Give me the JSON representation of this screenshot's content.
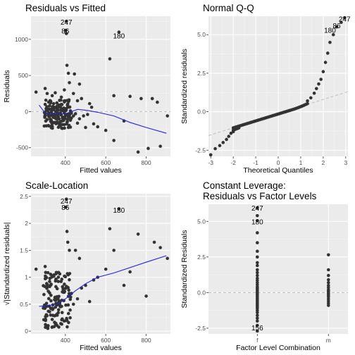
{
  "chart_data": [
    {
      "type": "scatter",
      "title": "Residuals vs Fitted",
      "title2": "",
      "xlabel": "Fitted values",
      "ylabel": "Residuals",
      "xlim": [
        230,
        920
      ],
      "ylim": [
        -620,
        1320
      ],
      "xticks": [
        400,
        600,
        800
      ],
      "yticks": [
        -500,
        0,
        500,
        1000
      ],
      "ref_line": 0,
      "labels": [
        {
          "text": "247",
          "x": 405,
          "y": 1240
        },
        {
          "text": "86",
          "x": 400,
          "y": 1120
        },
        {
          "text": "180",
          "x": 665,
          "y": 1050
        }
      ],
      "smooth": [
        [
          270,
          90
        ],
        [
          300,
          -20
        ],
        [
          340,
          -30
        ],
        [
          400,
          -30
        ],
        [
          460,
          30
        ],
        [
          500,
          20
        ],
        [
          560,
          -10
        ],
        [
          640,
          -60
        ],
        [
          720,
          -150
        ],
        [
          800,
          -220
        ],
        [
          900,
          -300
        ]
      ],
      "points": [
        [
          405,
          1250
        ],
        [
          402,
          1125
        ],
        [
          405,
          1080
        ],
        [
          665,
          1100
        ],
        [
          408,
          640
        ],
        [
          415,
          530
        ],
        [
          420,
          400
        ],
        [
          470,
          380
        ],
        [
          445,
          520
        ],
        [
          620,
          730
        ],
        [
          255,
          270
        ],
        [
          300,
          320
        ],
        [
          310,
          250
        ],
        [
          335,
          220
        ],
        [
          350,
          260
        ],
        [
          380,
          200
        ],
        [
          395,
          300
        ],
        [
          440,
          250
        ],
        [
          460,
          150
        ],
        [
          480,
          180
        ],
        [
          520,
          110
        ],
        [
          530,
          60
        ],
        [
          640,
          220
        ],
        [
          720,
          210
        ],
        [
          775,
          180
        ],
        [
          830,
          180
        ],
        [
          855,
          130
        ],
        [
          905,
          -60
        ],
        [
          600,
          -260
        ],
        [
          640,
          -400
        ],
        [
          690,
          -130
        ],
        [
          760,
          -560
        ],
        [
          810,
          -510
        ],
        [
          870,
          -480
        ],
        [
          540,
          -170
        ],
        [
          560,
          -210
        ],
        [
          500,
          -220
        ],
        [
          460,
          -160
        ],
        [
          430,
          -90
        ],
        [
          300,
          -30
        ],
        [
          310,
          -110
        ],
        [
          320,
          -70
        ],
        [
          330,
          -120
        ],
        [
          335,
          40
        ],
        [
          340,
          -40
        ],
        [
          345,
          -60
        ],
        [
          350,
          -90
        ],
        [
          355,
          50
        ],
        [
          360,
          -100
        ],
        [
          365,
          20
        ],
        [
          370,
          -30
        ],
        [
          375,
          -140
        ],
        [
          380,
          -50
        ],
        [
          385,
          30
        ],
        [
          390,
          -80
        ],
        [
          395,
          -20
        ],
        [
          400,
          -60
        ],
        [
          405,
          40
        ],
        [
          410,
          -110
        ],
        [
          415,
          -40
        ],
        [
          420,
          -80
        ],
        [
          425,
          10
        ],
        [
          430,
          -20
        ],
        [
          440,
          -60
        ],
        [
          300,
          100
        ],
        [
          305,
          40
        ],
        [
          312,
          10
        ],
        [
          318,
          -20
        ],
        [
          322,
          80
        ],
        [
          328,
          140
        ],
        [
          332,
          -200
        ],
        [
          338,
          70
        ],
        [
          342,
          110
        ],
        [
          348,
          -150
        ],
        [
          352,
          0
        ],
        [
          358,
          120
        ],
        [
          362,
          -60
        ],
        [
          368,
          90
        ],
        [
          372,
          -170
        ],
        [
          376,
          60
        ],
        [
          382,
          -230
        ],
        [
          388,
          10
        ],
        [
          392,
          -120
        ],
        [
          398,
          150
        ],
        [
          408,
          -150
        ],
        [
          412,
          60
        ],
        [
          418,
          -200
        ],
        [
          424,
          -30
        ],
        [
          300,
          -60
        ],
        [
          305,
          10
        ],
        [
          315,
          -50
        ],
        [
          325,
          30
        ],
        [
          330,
          -10
        ],
        [
          340,
          -80
        ],
        [
          345,
          60
        ],
        [
          350,
          -50
        ],
        [
          355,
          -100
        ],
        [
          360,
          30
        ],
        [
          365,
          -70
        ],
        [
          370,
          70
        ],
        [
          380,
          100
        ],
        [
          385,
          -90
        ],
        [
          390,
          40
        ],
        [
          395,
          -180
        ],
        [
          400,
          20
        ],
        [
          410,
          90
        ],
        [
          415,
          -70
        ],
        [
          425,
          -120
        ],
        [
          450,
          -30
        ],
        [
          470,
          -100
        ],
        [
          490,
          -60
        ],
        [
          510,
          -40
        ]
      ]
    },
    {
      "type": "scatter",
      "title": "Normal Q-Q",
      "title2": "",
      "xlabel": "Theoretical Quantiles",
      "ylabel": "Standardized residuals",
      "xlim": [
        -3.1,
        3.1
      ],
      "ylim": [
        -2.9,
        6.2
      ],
      "xticks": [
        -3,
        -2,
        -1,
        0,
        1,
        2,
        3
      ],
      "yticks": [
        -2.5,
        0.0,
        2.5,
        5.0
      ],
      "ref_line": "qq",
      "qq_line": [
        [
          -3.1,
          -1.55
        ],
        [
          3.1,
          1.3
        ]
      ],
      "labels": [
        {
          "text": "247",
          "x": 2.95,
          "y": 6.05
        },
        {
          "text": "86",
          "x": 2.6,
          "y": 5.6
        },
        {
          "text": "180",
          "x": 2.3,
          "y": 5.3
        }
      ],
      "qq": {
        "n": 300,
        "low": [
          [
            -3.0,
            -2.8
          ],
          [
            -2.8,
            -2.4
          ],
          [
            -2.6,
            -2.2
          ],
          [
            -2.45,
            -2.0
          ],
          [
            -2.3,
            -1.8
          ],
          [
            -2.2,
            -1.6
          ],
          [
            -2.1,
            -1.4
          ],
          [
            -2.0,
            -1.3
          ]
        ],
        "high": [
          [
            1.3,
            0.7
          ],
          [
            1.45,
            0.9
          ],
          [
            1.6,
            1.2
          ],
          [
            1.7,
            1.5
          ],
          [
            1.8,
            1.8
          ],
          [
            1.9,
            2.1
          ],
          [
            2.0,
            2.6
          ],
          [
            2.1,
            3.2
          ],
          [
            2.2,
            3.8
          ],
          [
            2.3,
            4.5
          ],
          [
            2.45,
            5.0
          ],
          [
            2.6,
            5.5
          ],
          [
            2.8,
            5.8
          ],
          [
            2.95,
            6.1
          ]
        ]
      }
    },
    {
      "type": "scatter",
      "title": "Scale-Location",
      "title2": "",
      "xlabel": "Fitted values",
      "ylabel": "√|Standardized residuals|",
      "xlim": [
        230,
        920
      ],
      "ylim": [
        -0.05,
        2.55
      ],
      "xticks": [
        400,
        600,
        800
      ],
      "yticks": [
        0.0,
        0.5,
        1.0,
        1.5,
        2.0,
        2.5
      ],
      "labels": [
        {
          "text": "247",
          "x": 405,
          "y": 2.42
        },
        {
          "text": "86",
          "x": 400,
          "y": 2.3
        },
        {
          "text": "180",
          "x": 665,
          "y": 2.25
        }
      ],
      "smooth": [
        [
          270,
          0.46
        ],
        [
          320,
          0.48
        ],
        [
          360,
          0.5
        ],
        [
          400,
          0.6
        ],
        [
          450,
          0.75
        ],
        [
          500,
          0.88
        ],
        [
          560,
          1.0
        ],
        [
          640,
          1.08
        ],
        [
          720,
          1.18
        ],
        [
          800,
          1.28
        ],
        [
          900,
          1.4
        ]
      ],
      "points": [
        [
          405,
          2.45
        ],
        [
          402,
          2.3
        ],
        [
          665,
          2.27
        ],
        [
          408,
          1.85
        ],
        [
          412,
          1.65
        ],
        [
          420,
          1.5
        ],
        [
          450,
          1.5
        ],
        [
          470,
          1.35
        ],
        [
          620,
          1.9
        ],
        [
          640,
          1.5
        ],
        [
          255,
          1.15
        ],
        [
          300,
          1.2
        ],
        [
          560,
          1.0
        ],
        [
          600,
          1.15
        ],
        [
          690,
          0.85
        ],
        [
          720,
          1.1
        ],
        [
          760,
          1.8
        ],
        [
          800,
          0.65
        ],
        [
          840,
          1.65
        ],
        [
          870,
          1.55
        ],
        [
          905,
          1.35
        ],
        [
          540,
          0.95
        ],
        [
          500,
          0.85
        ],
        [
          480,
          0.8
        ],
        [
          460,
          0.6
        ],
        [
          440,
          0.5
        ],
        [
          430,
          0.7
        ],
        [
          520,
          0.55
        ]
      ]
    },
    {
      "type": "scatter",
      "title": "Constant Leverage:",
      "title2": "Residuals vs Factor Levels",
      "xlabel": "Factor Level Combination",
      "ylabel": "Standardized Residuals",
      "categories": [
        "f",
        "m"
      ],
      "ylim": [
        -2.9,
        6.2
      ],
      "yticks": [
        -2.5,
        0.0,
        2.5,
        5.0
      ],
      "ref_line": 0,
      "labels": [
        {
          "text": "247",
          "x": "f",
          "y": 5.95
        },
        {
          "text": "180",
          "x": "f",
          "y": 5.0
        },
        {
          "text": "156",
          "x": "f",
          "y": -2.45
        }
      ],
      "points_f": [
        5.95,
        5.4,
        5.05,
        4.2,
        3.5,
        2.9,
        2.5,
        2.1,
        1.9,
        1.6,
        1.4,
        1.2,
        1.0,
        0.85,
        0.7,
        0.55,
        0.4,
        0.3,
        0.2,
        0.1,
        0.0,
        -0.1,
        -0.2,
        -0.3,
        -0.4,
        -0.5,
        -0.6,
        -0.7,
        -0.8,
        -0.9,
        -1.0,
        -1.1,
        -1.25,
        -1.4,
        -1.6,
        -1.8,
        -2.0,
        -2.3,
        -2.7
      ],
      "points_m": [
        2.65,
        1.6,
        1.2,
        0.9,
        0.7,
        0.5,
        0.35,
        0.2,
        0.1,
        0.0,
        -0.1,
        -0.2,
        -0.3,
        -0.45,
        -0.6,
        -0.75,
        -0.9
      ]
    }
  ]
}
